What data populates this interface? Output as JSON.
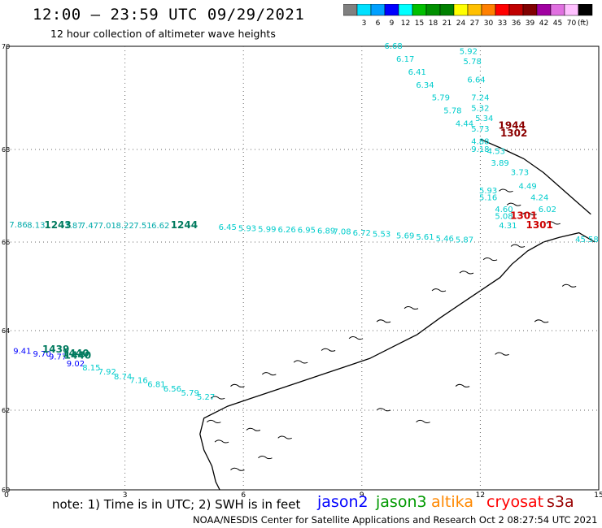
{
  "header": {
    "title": "12:00 – 23:59 UTC 09/29/2021",
    "subtitle": "12 hour collection of altimeter wave heights"
  },
  "colorbar": {
    "unit_label": "(ft)",
    "swatches": [
      {
        "color": "#808080",
        "label": ""
      },
      {
        "color": "#00e0ff",
        "label": "3"
      },
      {
        "color": "#00a0ff",
        "label": "6"
      },
      {
        "color": "#0000ff",
        "label": "9"
      },
      {
        "color": "#00ffff",
        "label": "12"
      },
      {
        "color": "#00c000",
        "label": "15"
      },
      {
        "color": "#009000",
        "label": "18"
      },
      {
        "color": "#008000",
        "label": "21"
      },
      {
        "color": "#ffff00",
        "label": "24"
      },
      {
        "color": "#ffc000",
        "label": "27"
      },
      {
        "color": "#ff8000",
        "label": "30"
      },
      {
        "color": "#ff0000",
        "label": "33"
      },
      {
        "color": "#c00000",
        "label": "36"
      },
      {
        "color": "#800000",
        "label": "39"
      },
      {
        "color": "#a000a0",
        "label": "42"
      },
      {
        "color": "#e070e0",
        "label": "45"
      },
      {
        "color": "#ffc0ff",
        "label": "70"
      },
      {
        "color": "#000000",
        "label": ""
      }
    ]
  },
  "map": {
    "axes": {
      "x_ticks": [
        "0",
        "3",
        "6",
        "9",
        "12",
        "15"
      ],
      "y_ticks": [
        "60",
        "62",
        "64",
        "66",
        "68",
        "70"
      ],
      "lon_range": [
        0,
        15
      ],
      "lat_range": [
        60,
        70
      ],
      "grid": "dotted"
    },
    "tracks": [
      {
        "satellite": "jason3",
        "color": "#00cccc",
        "time_labels": [
          {
            "text": "1244",
            "lon": 4.5,
            "lat": 66.3
          }
        ],
        "values": [
          {
            "v": "6.45",
            "lon": 5.6,
            "lat": 66.26
          },
          {
            "v": "5.93",
            "lon": 6.1,
            "lat": 66.24
          },
          {
            "v": "5.99",
            "lon": 6.6,
            "lat": 66.22
          },
          {
            "v": "6.26",
            "lon": 7.1,
            "lat": 66.21
          },
          {
            "v": "6.95",
            "lon": 7.6,
            "lat": 66.2
          },
          {
            "v": "6.89",
            "lon": 8.1,
            "lat": 66.18
          },
          {
            "v": "7.08",
            "lon": 8.5,
            "lat": 66.17
          },
          {
            "v": "6.72",
            "lon": 9.0,
            "lat": 66.14
          },
          {
            "v": "5.53",
            "lon": 9.5,
            "lat": 66.11
          },
          {
            "v": "5.69",
            "lon": 10.1,
            "lat": 66.08
          },
          {
            "v": "5.61",
            "lon": 10.6,
            "lat": 66.05
          },
          {
            "v": "5.46",
            "lon": 11.1,
            "lat": 66.02
          },
          {
            "v": "5.87",
            "lon": 11.6,
            "lat": 65.99
          }
        ]
      },
      {
        "satellite": "jason3",
        "color": "#00aaaa",
        "time_labels": [
          {
            "text": "1243",
            "lon": 1.3,
            "lat": 66.3
          }
        ],
        "values": [
          {
            "v": "7.86",
            "lon": 0.3,
            "lat": 66.32
          },
          {
            "v": "8.13",
            "lon": 0.75,
            "lat": 66.31
          },
          {
            "v": "7.87",
            "lon": 1.7,
            "lat": 66.3
          },
          {
            "v": "7.47",
            "lon": 2.1,
            "lat": 66.3
          },
          {
            "v": "7.01",
            "lon": 2.55,
            "lat": 66.3
          },
          {
            "v": "8.22",
            "lon": 3.0,
            "lat": 66.3
          },
          {
            "v": "7.51",
            "lon": 3.45,
            "lat": 66.3
          },
          {
            "v": "6.62",
            "lon": 3.9,
            "lat": 66.3
          }
        ]
      },
      {
        "satellite": "jason2",
        "color": "#0000ff",
        "time_labels": [
          {
            "text": "1440",
            "lon": 1.8,
            "lat": 63.3
          }
        ],
        "values": [
          {
            "v": "9.41",
            "lon": 0.4,
            "lat": 63.42
          },
          {
            "v": "9.70",
            "lon": 0.9,
            "lat": 63.35
          },
          {
            "v": "9.77",
            "lon": 1.3,
            "lat": 63.28
          },
          {
            "v": "9.02",
            "lon": 1.75,
            "lat": 63.1
          }
        ]
      },
      {
        "satellite": "altika",
        "color": "#00aa00",
        "time_labels": [
          {
            "text": "1439",
            "lon": 1.25,
            "lat": 63.45
          },
          {
            "text": "1440",
            "lon": 1.75,
            "lat": 63.35
          }
        ],
        "values": []
      },
      {
        "satellite": "jason2",
        "color": "#00cccc",
        "time_labels": [],
        "values": [
          {
            "v": "8.15",
            "lon": 2.15,
            "lat": 63.0
          },
          {
            "v": "7.92",
            "lon": 2.55,
            "lat": 62.9
          },
          {
            "v": "8.74",
            "lon": 2.95,
            "lat": 62.78
          },
          {
            "v": "7.16",
            "lon": 3.35,
            "lat": 62.68
          },
          {
            "v": "6.81",
            "lon": 3.8,
            "lat": 62.58
          },
          {
            "v": "6.56",
            "lon": 4.2,
            "lat": 62.47
          },
          {
            "v": "5.79",
            "lon": 4.65,
            "lat": 62.37
          },
          {
            "v": "5.27",
            "lon": 5.05,
            "lat": 62.27
          }
        ]
      },
      {
        "satellite": "cryosat",
        "color": "#00cccc",
        "time_labels": [
          {
            "text": "1944",
            "lon": 12.8,
            "lat": 68.4
          },
          {
            "text": "1302",
            "lon": 12.85,
            "lat": 68.25
          }
        ],
        "values": [
          {
            "v": "6.68",
            "lon": 9.8,
            "lat": 69.95
          },
          {
            "v": "6.17",
            "lon": 10.1,
            "lat": 69.7
          },
          {
            "v": "6.41",
            "lon": 10.4,
            "lat": 69.45
          },
          {
            "v": "6.34",
            "lon": 10.6,
            "lat": 69.2
          },
          {
            "v": "5.79",
            "lon": 11.0,
            "lat": 68.95
          },
          {
            "v": "5.78",
            "lon": 11.3,
            "lat": 68.7
          },
          {
            "v": "4.44",
            "lon": 11.6,
            "lat": 68.45
          },
          {
            "v": "5.92",
            "lon": 11.7,
            "lat": 69.85
          },
          {
            "v": "5.78",
            "lon": 11.8,
            "lat": 69.65
          },
          {
            "v": "6.64",
            "lon": 11.9,
            "lat": 69.3
          },
          {
            "v": "7.24",
            "lon": 12.0,
            "lat": 68.95
          },
          {
            "v": "5.32",
            "lon": 12.0,
            "lat": 68.75
          },
          {
            "v": "5.34",
            "lon": 12.1,
            "lat": 68.55
          },
          {
            "v": "5.73",
            "lon": 12.0,
            "lat": 68.35
          },
          {
            "v": "4.88",
            "lon": 12.0,
            "lat": 68.1
          },
          {
            "v": "9.18",
            "lon": 12.0,
            "lat": 67.95
          },
          {
            "v": "4.53",
            "lon": 12.4,
            "lat": 67.9
          },
          {
            "v": "3.89",
            "lon": 12.5,
            "lat": 67.65
          }
        ]
      },
      {
        "satellite": "s3a",
        "color": "#00cccc",
        "time_labels": [
          {
            "text": "1301",
            "lon": 13.1,
            "lat": 66.5
          },
          {
            "text": "1301",
            "lon": 13.5,
            "lat": 66.3
          }
        ],
        "values": [
          {
            "v": "3.73",
            "lon": 13.0,
            "lat": 67.45
          },
          {
            "v": "4.49",
            "lon": 13.2,
            "lat": 67.15
          },
          {
            "v": "5.93",
            "lon": 12.2,
            "lat": 67.05
          },
          {
            "v": "5.16",
            "lon": 12.2,
            "lat": 66.9
          },
          {
            "v": "4.24",
            "lon": 13.5,
            "lat": 66.9
          },
          {
            "v": "4.60",
            "lon": 12.6,
            "lat": 66.65
          },
          {
            "v": "5.08",
            "lon": 12.6,
            "lat": 66.5
          },
          {
            "v": "4.31",
            "lon": 12.7,
            "lat": 66.3
          },
          {
            "v": "6.02",
            "lon": 13.7,
            "lat": 66.65
          },
          {
            "v": "45.58",
            "lon": 14.7,
            "lat": 66.0
          }
        ]
      }
    ]
  },
  "footer": {
    "note": "note:  1) Time is in UTC;  2) SWH is in feet",
    "satellites": [
      {
        "name": "jason2",
        "color": "#0000ff"
      },
      {
        "name": "jason3",
        "color": "#009900"
      },
      {
        "name": "altika",
        "color": "#ff8800"
      },
      {
        "name": "cryosat",
        "color": "#ff0000"
      },
      {
        "name": "s3a",
        "color": "#990000"
      }
    ],
    "credit": "NOAA/NESDIS Center for Satellite Applications and Research    Oct  2 08:27:54 UTC 2021"
  }
}
